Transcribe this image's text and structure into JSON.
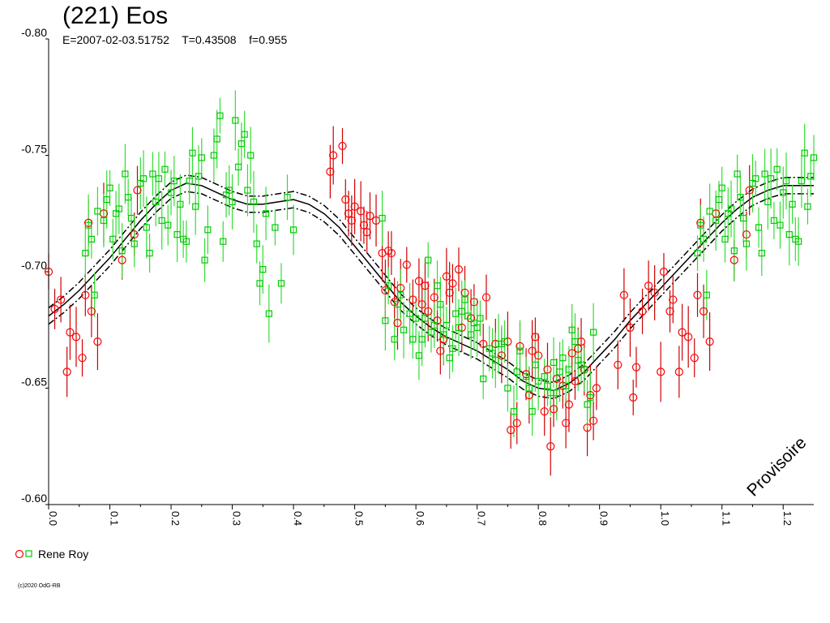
{
  "chart_data": {
    "type": "scatter",
    "title": "(221) Eos",
    "subtitle": "E=2007-02-03.51752    T=0.43508    f=0.955",
    "watermark": "Provisoire",
    "footer": "(c)2020 OdG-RB",
    "xlabel": "",
    "ylabel": "",
    "xlim": [
      0.0,
      1.25
    ],
    "ylim": [
      -0.6,
      -0.8
    ],
    "y_inverted": true,
    "x_ticks": [
      "0.0",
      "0.1",
      "0.2",
      "0.3",
      "0.4",
      "0.5",
      "0.6",
      "0.7",
      "0.8",
      "0.9",
      "1.0",
      "1.1",
      "1.2"
    ],
    "y_ticks": [
      "-0.80",
      "-0.75",
      "-0.70",
      "-0.65",
      "-0.60"
    ],
    "grid": false,
    "legend_position": "bottom-left",
    "colors": {
      "red_series": "#ff0000",
      "red_errorbar": "#cc0000",
      "green_series": "#00cc00",
      "green_errorbar": "#33dd33",
      "fit": "#000000"
    },
    "series": [
      {
        "name": "Rene Roy",
        "marker": "circle",
        "color": "#ff0000",
        "points": [
          [
            0.0,
            -0.7
          ],
          [
            0.01,
            -0.684
          ],
          [
            0.02,
            -0.688
          ],
          [
            0.03,
            -0.657
          ],
          [
            0.035,
            -0.674
          ],
          [
            0.045,
            -0.672
          ],
          [
            0.055,
            -0.663
          ],
          [
            0.06,
            -0.69
          ],
          [
            0.065,
            -0.721
          ],
          [
            0.07,
            -0.683
          ],
          [
            0.08,
            -0.67
          ],
          [
            0.09,
            -0.725
          ],
          [
            0.12,
            -0.705
          ],
          [
            0.14,
            -0.716
          ],
          [
            0.145,
            -0.735
          ],
          [
            0.46,
            -0.743
          ],
          [
            0.465,
            -0.75
          ],
          [
            0.48,
            -0.754
          ],
          [
            0.485,
            -0.731
          ],
          [
            0.49,
            -0.725
          ],
          [
            0.495,
            -0.722
          ],
          [
            0.5,
            -0.728
          ],
          [
            0.51,
            -0.726
          ],
          [
            0.515,
            -0.72
          ],
          [
            0.52,
            -0.717
          ],
          [
            0.525,
            -0.724
          ],
          [
            0.535,
            -0.722
          ],
          [
            0.545,
            -0.708
          ],
          [
            0.55,
            -0.692
          ],
          [
            0.555,
            -0.709
          ],
          [
            0.56,
            -0.708
          ],
          [
            0.565,
            -0.687
          ],
          [
            0.57,
            -0.678
          ],
          [
            0.575,
            -0.693
          ],
          [
            0.585,
            -0.703
          ],
          [
            0.595,
            -0.688
          ],
          [
            0.605,
            -0.696
          ],
          [
            0.61,
            -0.686
          ],
          [
            0.615,
            -0.694
          ],
          [
            0.62,
            -0.683
          ],
          [
            0.63,
            -0.689
          ],
          [
            0.635,
            -0.679
          ],
          [
            0.64,
            -0.666
          ],
          [
            0.645,
            -0.671
          ],
          [
            0.65,
            -0.698
          ],
          [
            0.655,
            -0.691
          ],
          [
            0.66,
            -0.695
          ],
          [
            0.67,
            -0.701
          ],
          [
            0.675,
            -0.676
          ],
          [
            0.68,
            -0.691
          ],
          [
            0.69,
            -0.68
          ],
          [
            0.695,
            -0.687
          ],
          [
            0.71,
            -0.669
          ],
          [
            0.715,
            -0.689
          ],
          [
            0.73,
            -0.669
          ],
          [
            0.74,
            -0.664
          ],
          [
            0.75,
            -0.67
          ],
          [
            0.755,
            -0.632
          ],
          [
            0.765,
            -0.635
          ],
          [
            0.77,
            -0.668
          ],
          [
            0.78,
            -0.656
          ],
          [
            0.785,
            -0.647
          ],
          [
            0.79,
            -0.666
          ],
          [
            0.795,
            -0.672
          ],
          [
            0.8,
            -0.664
          ],
          [
            0.81,
            -0.64
          ],
          [
            0.815,
            -0.658
          ],
          [
            0.82,
            -0.625
          ],
          [
            0.825,
            -0.641
          ],
          [
            0.83,
            -0.654
          ],
          [
            0.84,
            -0.651
          ],
          [
            0.845,
            -0.635
          ],
          [
            0.85,
            -0.643
          ],
          [
            0.855,
            -0.665
          ],
          [
            0.86,
            -0.653
          ],
          [
            0.865,
            -0.667
          ],
          [
            0.87,
            -0.67
          ],
          [
            0.875,
            -0.658
          ],
          [
            0.88,
            -0.633
          ],
          [
            0.885,
            -0.647
          ],
          [
            0.89,
            -0.636
          ],
          [
            0.895,
            -0.65
          ],
          [
            0.93,
            -0.66
          ],
          [
            0.94,
            -0.69
          ],
          [
            0.95,
            -0.676
          ],
          [
            0.955,
            -0.646
          ],
          [
            0.96,
            -0.659
          ],
          [
            0.97,
            -0.683
          ],
          [
            0.98,
            -0.694
          ],
          [
            0.99,
            -0.691
          ],
          [
            1.0,
            -0.657
          ],
          [
            1.005,
            -0.7
          ],
          [
            1.015,
            -0.683
          ],
          [
            1.02,
            -0.688
          ],
          [
            1.03,
            -0.657
          ],
          [
            1.035,
            -0.674
          ],
          [
            1.045,
            -0.672
          ],
          [
            1.055,
            -0.663
          ],
          [
            1.06,
            -0.69
          ],
          [
            1.065,
            -0.721
          ],
          [
            1.07,
            -0.683
          ],
          [
            1.08,
            -0.67
          ],
          [
            1.09,
            -0.725
          ],
          [
            1.12,
            -0.705
          ],
          [
            1.14,
            -0.716
          ],
          [
            1.145,
            -0.735
          ]
        ]
      },
      {
        "name": "",
        "marker": "square",
        "color": "#00cc00",
        "points": [
          [
            0.06,
            -0.708
          ],
          [
            0.065,
            -0.72
          ],
          [
            0.07,
            -0.714
          ],
          [
            0.075,
            -0.69
          ],
          [
            0.08,
            -0.726
          ],
          [
            0.09,
            -0.722
          ],
          [
            0.095,
            -0.731
          ],
          [
            0.1,
            -0.736
          ],
          [
            0.105,
            -0.714
          ],
          [
            0.11,
            -0.725
          ],
          [
            0.115,
            -0.727
          ],
          [
            0.12,
            -0.709
          ],
          [
            0.125,
            -0.742
          ],
          [
            0.13,
            -0.732
          ],
          [
            0.135,
            -0.723
          ],
          [
            0.14,
            -0.712
          ],
          [
            0.15,
            -0.738
          ],
          [
            0.155,
            -0.74
          ],
          [
            0.16,
            -0.719
          ],
          [
            0.165,
            -0.708
          ],
          [
            0.17,
            -0.742
          ],
          [
            0.175,
            -0.73
          ],
          [
            0.18,
            -0.74
          ],
          [
            0.185,
            -0.722
          ],
          [
            0.19,
            -0.744
          ],
          [
            0.195,
            -0.72
          ],
          [
            0.2,
            -0.734
          ],
          [
            0.205,
            -0.739
          ],
          [
            0.21,
            -0.716
          ],
          [
            0.215,
            -0.729
          ],
          [
            0.22,
            -0.714
          ],
          [
            0.225,
            -0.713
          ],
          [
            0.23,
            -0.739
          ],
          [
            0.235,
            -0.751
          ],
          [
            0.24,
            -0.728
          ],
          [
            0.245,
            -0.741
          ],
          [
            0.25,
            -0.749
          ],
          [
            0.255,
            -0.705
          ],
          [
            0.26,
            -0.718
          ],
          [
            0.27,
            -0.75
          ],
          [
            0.275,
            -0.757
          ],
          [
            0.28,
            -0.767
          ],
          [
            0.285,
            -0.713
          ],
          [
            0.29,
            -0.733
          ],
          [
            0.295,
            -0.735
          ],
          [
            0.3,
            -0.73
          ],
          [
            0.305,
            -0.765
          ],
          [
            0.31,
            -0.745
          ],
          [
            0.315,
            -0.755
          ],
          [
            0.32,
            -0.759
          ],
          [
            0.325,
            -0.735
          ],
          [
            0.33,
            -0.75
          ],
          [
            0.335,
            -0.73
          ],
          [
            0.34,
            -0.712
          ],
          [
            0.345,
            -0.695
          ],
          [
            0.35,
            -0.701
          ],
          [
            0.355,
            -0.725
          ],
          [
            0.36,
            -0.682
          ],
          [
            0.37,
            -0.719
          ],
          [
            0.38,
            -0.695
          ],
          [
            0.39,
            -0.732
          ],
          [
            0.4,
            -0.718
          ],
          [
            0.545,
            -0.723
          ],
          [
            0.55,
            -0.679
          ],
          [
            0.555,
            -0.694
          ],
          [
            0.565,
            -0.671
          ],
          [
            0.57,
            -0.686
          ],
          [
            0.575,
            -0.69
          ],
          [
            0.58,
            -0.675
          ],
          [
            0.59,
            -0.682
          ],
          [
            0.595,
            -0.671
          ],
          [
            0.6,
            -0.68
          ],
          [
            0.605,
            -0.664
          ],
          [
            0.61,
            -0.671
          ],
          [
            0.615,
            -0.68
          ],
          [
            0.62,
            -0.705
          ],
          [
            0.625,
            -0.674
          ],
          [
            0.63,
            -0.677
          ],
          [
            0.635,
            -0.694
          ],
          [
            0.64,
            -0.686
          ],
          [
            0.645,
            -0.673
          ],
          [
            0.65,
            -0.677
          ],
          [
            0.655,
            -0.663
          ],
          [
            0.66,
            -0.667
          ],
          [
            0.665,
            -0.682
          ],
          [
            0.67,
            -0.676
          ],
          [
            0.675,
            -0.683
          ],
          [
            0.68,
            -0.688
          ],
          [
            0.685,
            -0.681
          ],
          [
            0.69,
            -0.673
          ],
          [
            0.695,
            -0.678
          ],
          [
            0.7,
            -0.676
          ],
          [
            0.705,
            -0.68
          ],
          [
            0.71,
            -0.654
          ],
          [
            0.72,
            -0.667
          ],
          [
            0.725,
            -0.665
          ],
          [
            0.73,
            -0.662
          ],
          [
            0.735,
            -0.669
          ],
          [
            0.74,
            -0.669
          ],
          [
            0.745,
            -0.67
          ],
          [
            0.75,
            -0.65
          ],
          [
            0.76,
            -0.64
          ],
          [
            0.765,
            -0.657
          ],
          [
            0.77,
            -0.666
          ],
          [
            0.78,
            -0.655
          ],
          [
            0.785,
            -0.65
          ],
          [
            0.79,
            -0.64
          ],
          [
            0.795,
            -0.66
          ],
          [
            0.8,
            -0.653
          ],
          [
            0.81,
            -0.655
          ],
          [
            0.815,
            -0.651
          ],
          [
            0.82,
            -0.648
          ],
          [
            0.825,
            -0.661
          ],
          [
            0.83,
            -0.648
          ],
          [
            0.835,
            -0.657
          ],
          [
            0.84,
            -0.663
          ],
          [
            0.845,
            -0.651
          ],
          [
            0.85,
            -0.658
          ],
          [
            0.855,
            -0.675
          ],
          [
            0.86,
            -0.67
          ],
          [
            0.865,
            -0.662
          ],
          [
            0.87,
            -0.66
          ],
          [
            0.875,
            -0.658
          ],
          [
            0.88,
            -0.643
          ],
          [
            0.885,
            -0.646
          ],
          [
            0.89,
            -0.674
          ],
          [
            1.06,
            -0.708
          ],
          [
            1.065,
            -0.72
          ],
          [
            1.07,
            -0.714
          ],
          [
            1.075,
            -0.69
          ],
          [
            1.08,
            -0.726
          ],
          [
            1.09,
            -0.722
          ],
          [
            1.095,
            -0.731
          ],
          [
            1.1,
            -0.736
          ],
          [
            1.105,
            -0.714
          ],
          [
            1.11,
            -0.725
          ],
          [
            1.115,
            -0.727
          ],
          [
            1.12,
            -0.709
          ],
          [
            1.125,
            -0.742
          ],
          [
            1.13,
            -0.732
          ],
          [
            1.135,
            -0.723
          ],
          [
            1.14,
            -0.712
          ],
          [
            1.15,
            -0.738
          ],
          [
            1.155,
            -0.74
          ],
          [
            1.16,
            -0.719
          ],
          [
            1.165,
            -0.708
          ],
          [
            1.17,
            -0.742
          ],
          [
            1.175,
            -0.73
          ],
          [
            1.18,
            -0.74
          ],
          [
            1.185,
            -0.722
          ],
          [
            1.19,
            -0.744
          ],
          [
            1.195,
            -0.72
          ],
          [
            1.2,
            -0.734
          ],
          [
            1.205,
            -0.739
          ],
          [
            1.21,
            -0.716
          ],
          [
            1.215,
            -0.729
          ],
          [
            1.22,
            -0.714
          ],
          [
            1.225,
            -0.713
          ],
          [
            1.23,
            -0.739
          ],
          [
            1.235,
            -0.751
          ],
          [
            1.24,
            -0.728
          ],
          [
            1.245,
            -0.741
          ],
          [
            1.25,
            -0.749
          ]
        ]
      }
    ],
    "fit_curve": {
      "x": [
        0.0,
        0.025,
        0.05,
        0.075,
        0.1,
        0.125,
        0.15,
        0.175,
        0.2,
        0.225,
        0.25,
        0.275,
        0.3,
        0.325,
        0.35,
        0.375,
        0.4,
        0.425,
        0.45,
        0.475,
        0.5,
        0.525,
        0.55,
        0.575,
        0.6,
        0.625,
        0.65,
        0.675,
        0.7,
        0.725,
        0.75,
        0.775,
        0.8,
        0.825,
        0.85,
        0.875,
        0.9,
        0.925,
        0.95,
        0.975,
        1.0,
        1.025,
        1.05,
        1.075,
        1.1,
        1.125,
        1.15,
        1.175,
        1.2,
        1.225,
        1.25
      ],
      "y": [
        -0.681,
        -0.686,
        -0.692,
        -0.699,
        -0.706,
        -0.714,
        -0.722,
        -0.729,
        -0.735,
        -0.738,
        -0.737,
        -0.734,
        -0.731,
        -0.729,
        -0.729,
        -0.73,
        -0.731,
        -0.729,
        -0.725,
        -0.719,
        -0.711,
        -0.703,
        -0.695,
        -0.687,
        -0.681,
        -0.676,
        -0.672,
        -0.669,
        -0.666,
        -0.662,
        -0.658,
        -0.653,
        -0.65,
        -0.649,
        -0.652,
        -0.657,
        -0.664,
        -0.671,
        -0.679,
        -0.686,
        -0.693,
        -0.7,
        -0.707,
        -0.714,
        -0.721,
        -0.727,
        -0.732,
        -0.735,
        -0.737,
        -0.737,
        -0.737
      ],
      "band": 0.0035
    }
  }
}
